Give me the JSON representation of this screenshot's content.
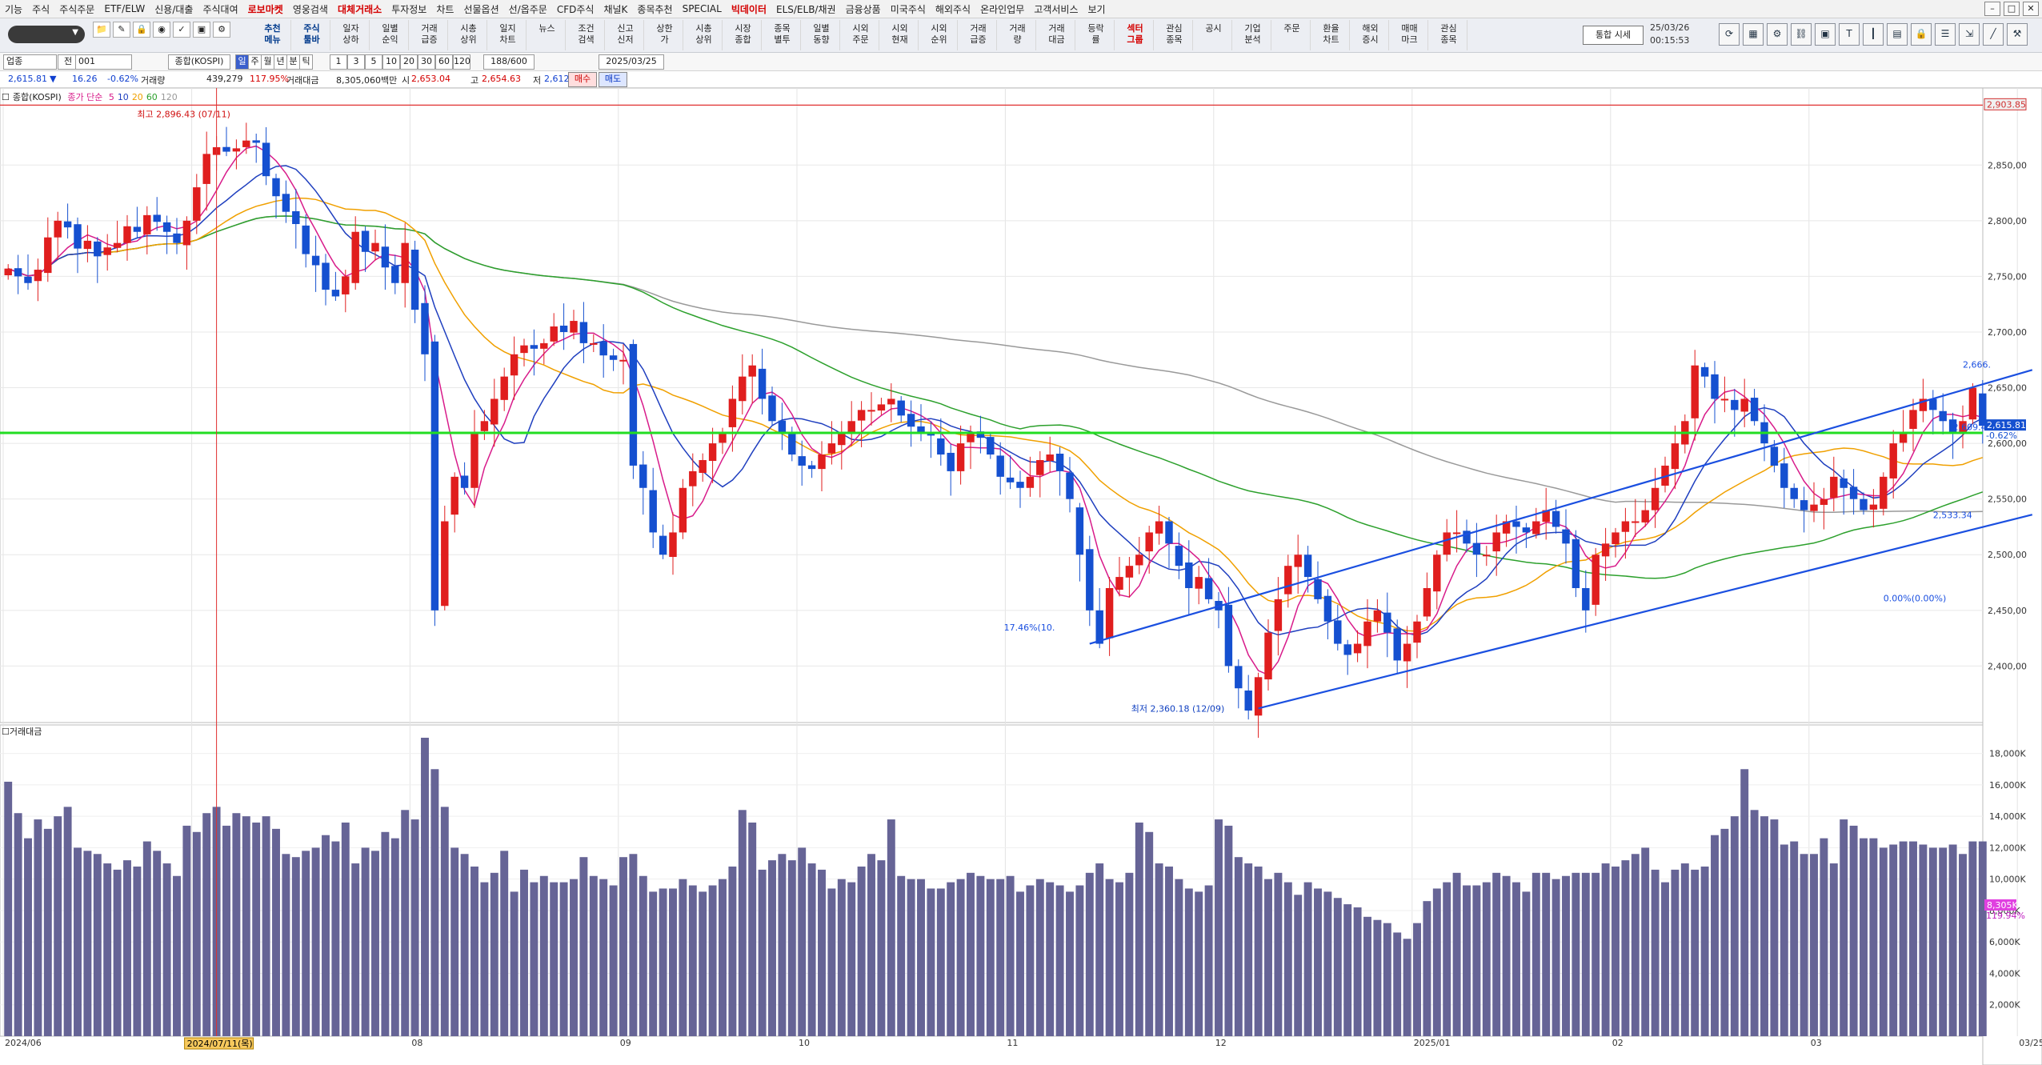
{
  "menu": [
    "기능",
    "주식",
    "주식주문",
    "ETF/ELW",
    "신용/대출",
    "주식대여",
    "로보마켓",
    "영웅검색",
    "대체거래소",
    "투자정보",
    "차트",
    "선물옵션",
    "선/옵주문",
    "CFD주식",
    "채널K",
    "종목추천",
    "SPECIAL",
    "빅데이터",
    "ELS/ELB/채권",
    "금융상품",
    "미국주식",
    "해외주식",
    "온라인업무",
    "고객서비스",
    "보기"
  ],
  "menu_red": [
    "로보마켓",
    "대체거래소",
    "빅데이터"
  ],
  "toolbar": {
    "buttons": [
      "추천\n메뉴",
      "주식\n툴바",
      "일자\n상하",
      "일별\n순익",
      "거래\n급증",
      "시총\n상위",
      "일지\n차트",
      "뉴스",
      "조건\n검색",
      "신고\n신저",
      "상한\n가",
      "시총\n상위",
      "시장\n종합",
      "종목\n별투",
      "일별\n동향",
      "시외\n주문",
      "시외\n현재",
      "시외\n순위",
      "거래\n급증",
      "거래\n량",
      "거래\n대금",
      "등락\n률",
      "섹터\n그룹",
      "관심\n종목",
      "공시",
      "기업\n분석",
      "주문",
      "환율\n차트",
      "해외\n증시",
      "매매\n마크",
      "관심\n종목"
    ],
    "red_index": 22,
    "tonghap_label": "통합 시세",
    "date": "25/03/26",
    "time": "00:15:53",
    "right_icons": [
      "refresh-icon",
      "grid-icon",
      "gear-icon",
      "link-icon",
      "window-icon",
      "text-icon",
      "bar-icon",
      "chart-icon",
      "lock-icon",
      "list-icon",
      "export-icon",
      "line-icon",
      "settings-icon"
    ]
  },
  "controls": {
    "market": "업종",
    "all": "전",
    "code": "001",
    "name": "종합(KOSPI)",
    "periods": [
      "일",
      "주",
      "월",
      "년",
      "분",
      "틱"
    ],
    "selected_period": "일",
    "nums": [
      "1",
      "3",
      "5",
      "10",
      "20",
      "30",
      "60",
      "120"
    ],
    "count": "188/600",
    "date": "2025/03/25"
  },
  "quote": {
    "price": "2,615.81",
    "arrow": "▼",
    "change": "16.26",
    "pct": "-0.62%",
    "vol_label": "거래량",
    "vol": "439,279",
    "vol_pct": "117.95%",
    "amt_label": "거래대금",
    "amt": "8,305,060백만",
    "open_label": "시",
    "open": "2,653.04",
    "high_label": "고",
    "high": "2,654.63",
    "low_label": "저",
    "low": "2,612.74",
    "buy": "매수",
    "sell": "매도"
  },
  "legend": {
    "name": "종합(KOSPI)",
    "ma_label": "종가 단순",
    "ma": [
      {
        "p": "5",
        "c": "#d81b8a"
      },
      {
        "p": "10",
        "c": "#1f3fbf"
      },
      {
        "p": "20",
        "c": "#f0a000"
      },
      {
        "p": "60",
        "c": "#2ca02c"
      },
      {
        "p": "120",
        "c": "#999999"
      }
    ],
    "volume_title": "거래대금"
  },
  "annotations": {
    "high": "최고 2,896.43 (07/11)",
    "low": "최저 2,360.18 (12/09)",
    "pct_left": "17.46%(10.",
    "pct_zero": "0.00%(0.00%)",
    "ch_top": "2,666.",
    "ch_mid": "2,609.43",
    "ch_bot": "2,533.34",
    "crosshair_date": "2024/07/11(목)",
    "price_tag": "2,615.81",
    "price_pct": "-0.62%",
    "top_tag": "2,903.85",
    "vol_tag": "8,305K",
    "vol_pct": "119.94%"
  },
  "chart_data": {
    "type": "candlestick",
    "y_price": {
      "min": 2355,
      "max": 2912,
      "ticks": [
        2400,
        2450,
        2500,
        2550,
        2600,
        2650,
        2700,
        2750,
        2800,
        2850
      ]
    },
    "y_volume": {
      "min": 0,
      "max": 19000,
      "ticks": [
        2000,
        4000,
        6000,
        8000,
        10000,
        12000,
        14000,
        16000,
        18000
      ],
      "unit": "K"
    },
    "x_month_labels": [
      {
        "i": 0,
        "t": "2024/06"
      },
      {
        "i": 19,
        "t": "07"
      },
      {
        "i": 41,
        "t": "08"
      },
      {
        "i": 62,
        "t": "09"
      },
      {
        "i": 80,
        "t": "10"
      },
      {
        "i": 101,
        "t": "11"
      },
      {
        "i": 122,
        "t": "12"
      },
      {
        "i": 142,
        "t": "2025/01"
      },
      {
        "i": 162,
        "t": "02"
      },
      {
        "i": 182,
        "t": "03"
      },
      {
        "i": 203,
        "t": "03/25"
      }
    ],
    "crosshair_index": 21,
    "horizontal_lines": [
      {
        "value": 2903.85,
        "color": "#e03030"
      },
      {
        "value": 2609.43,
        "color": "#22dd22"
      }
    ],
    "closes": [
      2757,
      2750,
      2744,
      2756,
      2785,
      2800,
      2794,
      2775,
      2782,
      2768,
      2776,
      2780,
      2795,
      2790,
      2805,
      2799,
      2790,
      2780,
      2800,
      2830,
      2860,
      2866,
      2862,
      2865,
      2872,
      2870,
      2840,
      2822,
      2808,
      2797,
      2770,
      2760,
      2738,
      2732,
      2750,
      2790,
      2772,
      2780,
      2758,
      2744,
      2780,
      2720,
      2680,
      2450,
      2530,
      2570,
      2560,
      2610,
      2620,
      2640,
      2660,
      2680,
      2688,
      2685,
      2690,
      2705,
      2700,
      2710,
      2690,
      2690,
      2679,
      2675,
      2675,
      2580,
      2560,
      2520,
      2500,
      2520,
      2560,
      2575,
      2585,
      2600,
      2610,
      2640,
      2660,
      2670,
      2640,
      2620,
      2610,
      2590,
      2580,
      2577,
      2590,
      2600,
      2610,
      2620,
      2630,
      2630,
      2635,
      2640,
      2625,
      2615,
      2610,
      2607,
      2590,
      2575,
      2600,
      2610,
      2605,
      2590,
      2570,
      2565,
      2560,
      2570,
      2585,
      2590,
      2575,
      2550,
      2500,
      2450,
      2420,
      2470,
      2480,
      2490,
      2500,
      2520,
      2530,
      2510,
      2490,
      2470,
      2480,
      2460,
      2450,
      2400,
      2380,
      2360,
      2390,
      2430,
      2460,
      2490,
      2500,
      2480,
      2460,
      2440,
      2420,
      2410,
      2420,
      2440,
      2450,
      2430,
      2405,
      2420,
      2440,
      2470,
      2500,
      2520,
      2520,
      2510,
      2500,
      2500,
      2520,
      2530,
      2525,
      2520,
      2530,
      2540,
      2525,
      2510,
      2470,
      2450,
      2500,
      2510,
      2520,
      2530,
      2530,
      2540,
      2560,
      2580,
      2600,
      2620,
      2670,
      2660,
      2640,
      2640,
      2630,
      2640,
      2620,
      2600,
      2580,
      2560,
      2550,
      2540,
      2545,
      2550,
      2570,
      2560,
      2550,
      2540,
      2545,
      2570,
      2600,
      2610,
      2630,
      2640,
      2630,
      2620,
      2610,
      2620,
      2650,
      2615.81
    ],
    "volumes": [
      16200,
      14200,
      12600,
      13800,
      13200,
      14000,
      14600,
      12000,
      11800,
      11600,
      11000,
      10600,
      11200,
      10800,
      12400,
      11800,
      11000,
      10200,
      13400,
      13000,
      14200,
      14600,
      13400,
      14200,
      14000,
      13600,
      14000,
      13200,
      11600,
      11400,
      11800,
      12000,
      12800,
      12400,
      13600,
      11000,
      12000,
      11800,
      13000,
      12600,
      14400,
      13800,
      19000,
      17000,
      14600,
      12000,
      11600,
      10800,
      9800,
      10400,
      11800,
      9200,
      10600,
      9800,
      10200,
      9800,
      9800,
      10000,
      11400,
      10200,
      10000,
      9600,
      11400,
      11600,
      10200,
      9200,
      9400,
      9400,
      10000,
      9600,
      9200,
      9600,
      10000,
      10800,
      14400,
      13600,
      10600,
      11200,
      11600,
      11200,
      12000,
      11000,
      10600,
      9400,
      10000,
      9800,
      10800,
      11600,
      11200,
      13800,
      10200,
      10000,
      10000,
      9400,
      9400,
      9800,
      10000,
      10400,
      10200,
      10000,
      10000,
      10200,
      9200,
      9600,
      10000,
      9800,
      9600,
      9200,
      9600,
      10400,
      11000,
      10000,
      9800,
      10400,
      13600,
      13000,
      11000,
      10800,
      10000,
      9400,
      9200,
      9600,
      13800,
      13400,
      11400,
      11000,
      10800,
      10000,
      10400,
      9800,
      9000,
      9800,
      9400,
      9200,
      8800,
      8400,
      8200,
      7600,
      7400,
      7200,
      6600,
      6200,
      7200,
      8600,
      9400,
      9800,
      10400,
      9600,
      9600,
      9800,
      10400,
      10200,
      9800,
      9200,
      10400,
      10400,
      10000,
      10200,
      10400,
      10400,
      10400,
      11000,
      10800,
      11200,
      11600,
      12000,
      10600,
      9800,
      10600,
      11000,
      10600,
      10800,
      12800,
      13200,
      14000,
      17000,
      14400,
      14000,
      13800,
      12200,
      12400,
      11600,
      11600,
      12600,
      11000,
      13800,
      13400,
      12600,
      12600,
      12000,
      12200,
      12400,
      12400,
      12200,
      12000,
      12000,
      12200,
      11600,
      12400,
      12400,
      14200,
      11400,
      8305
    ]
  }
}
